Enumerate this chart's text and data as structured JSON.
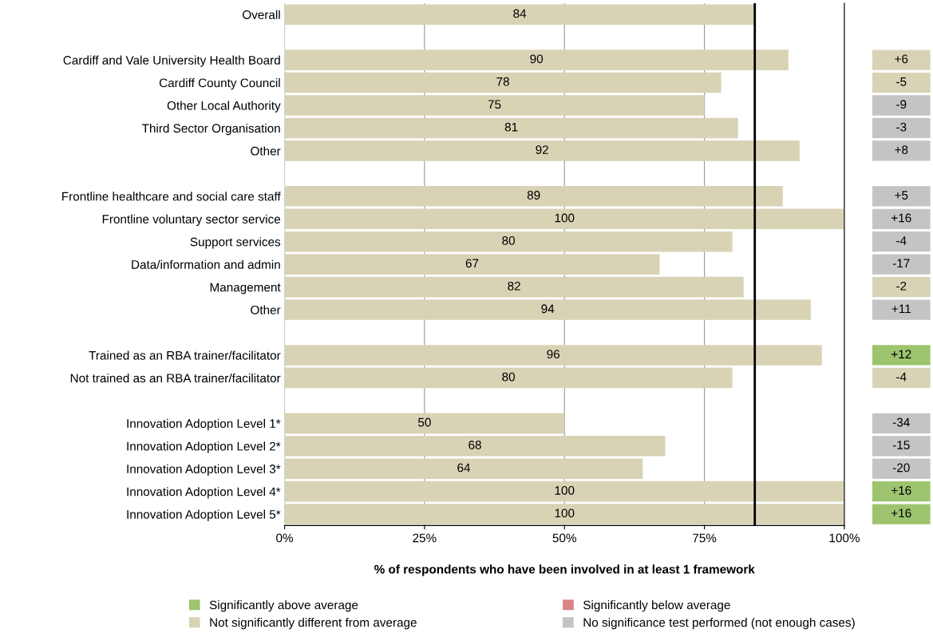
{
  "chart_data": [
    {
      "type": "bar",
      "orientation": "horizontal",
      "xlabel": "% of respondents who have been involved in at least 1 framework",
      "categories": [
        "Overall",
        null,
        "Cardiff and Vale University Health Board",
        "Cardiff County Council",
        "Other Local Authority",
        "Third Sector Organisation",
        "Other",
        null,
        "Frontline healthcare and social care staff",
        "Frontline voluntary sector service",
        "Support services",
        "Data/information and admin",
        "Management",
        "Other",
        null,
        "Trained as an RBA trainer/facilitator",
        "Not trained as an RBA trainer/facilitator",
        null,
        "Innovation Adoption Level 1*",
        "Innovation Adoption Level 2*",
        "Innovation Adoption Level 3*",
        "Innovation Adoption Level 4*",
        "Innovation Adoption Level 5*"
      ],
      "values": [
        84,
        null,
        90,
        78,
        75,
        81,
        92,
        null,
        89,
        100,
        80,
        67,
        82,
        94,
        null,
        96,
        80,
        null,
        50,
        68,
        64,
        100,
        100
      ],
      "color": "#d8d3b5",
      "data_labels": true,
      "xlim": [
        0,
        100
      ],
      "xticks": [
        {
          "value": 0,
          "label": "0%"
        },
        {
          "value": 25,
          "label": "25%"
        },
        {
          "value": 50,
          "label": "50%"
        },
        {
          "value": 75,
          "label": "75%"
        },
        {
          "value": 100,
          "label": "100%"
        }
      ],
      "grid": "x",
      "ref_lines": [
        {
          "axis": "x",
          "value": 84,
          "color": "#000000"
        }
      ]
    },
    {
      "type": "other",
      "legend": "bottom",
      "categories": [
        null,
        null,
        null,
        null,
        null,
        null,
        null,
        null,
        null,
        null,
        null,
        null,
        null,
        null,
        null,
        null,
        null,
        null,
        null,
        null,
        null,
        null,
        null
      ],
      "value_labels": [
        null,
        null,
        "+6",
        "-5",
        "-9",
        "-3",
        "+8",
        null,
        "+5",
        "+16",
        "-4",
        "-17",
        "-2",
        "+11",
        null,
        "+12",
        "-4",
        null,
        "-34",
        "-15",
        "-20",
        "+16",
        "+16"
      ],
      "colors": [
        null,
        null,
        "#d8d3b5",
        "#d8d3b5",
        "#c4c4c4",
        "#c4c4c4",
        "#c4c4c4",
        null,
        "#c4c4c4",
        "#c4c4c4",
        "#c4c4c4",
        "#c4c4c4",
        "#d8d3b5",
        "#c4c4c4",
        null,
        "#9dc46e",
        "#d8d3b5",
        null,
        "#c4c4c4",
        "#c4c4c4",
        "#c4c4c4",
        "#9dc46e",
        "#9dc46e"
      ],
      "series": [
        {
          "name": "Significantly above average",
          "color": "#9dc46e",
          "values": [
            null,
            null,
            null,
            null,
            null,
            null,
            null,
            null,
            null,
            null,
            null,
            null,
            null,
            null,
            null,
            null,
            null,
            null,
            null,
            null,
            null,
            null,
            null
          ]
        },
        {
          "name": "Significantly below average",
          "color": "#d98585",
          "values": [
            null,
            null,
            null,
            null,
            null,
            null,
            null,
            null,
            null,
            null,
            null,
            null,
            null,
            null,
            null,
            null,
            null,
            null,
            null,
            null,
            null,
            null,
            null
          ]
        },
        {
          "name": "Not significantly different from average",
          "color": "#d8d3b5",
          "values": [
            null,
            null,
            null,
            null,
            null,
            null,
            null,
            null,
            null,
            null,
            null,
            null,
            null,
            null,
            null,
            null,
            null,
            null,
            null,
            null,
            null,
            null,
            null
          ]
        },
        {
          "name": "No significance test performed (not enough cases)",
          "color": "#c4c4c4",
          "values": [
            null,
            null,
            null,
            null,
            null,
            null,
            null,
            null,
            null,
            null,
            null,
            null,
            null,
            null,
            null,
            null,
            null,
            null,
            null,
            null,
            null,
            null,
            null
          ]
        }
      ]
    }
  ]
}
